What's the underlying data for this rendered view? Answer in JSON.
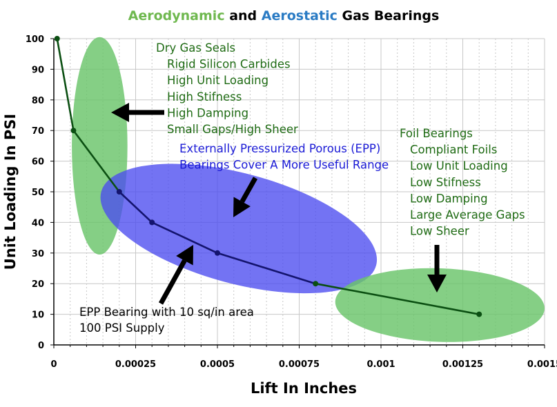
{
  "title": {
    "part1": "Aerodynamic",
    "part2": " and ",
    "part3": "Aerostatic",
    "part4": " Gas Bearings",
    "color1": "#6fb84f",
    "color3": "#2a7bc4",
    "color_text": "#000000"
  },
  "colors": {
    "green_region": "#6ac46a",
    "blue_region": "#4b4bf0",
    "line_dark_green": "#0b4f12",
    "line_dark_blue": "#14146e",
    "green_text": "#1f6b14",
    "blue_text": "#1a1ad6",
    "grid": "#c7c7c7"
  },
  "chart_data": {
    "type": "line",
    "title": "Aerodynamic and Aerostatic Gas Bearings",
    "xlabel": "Lift In Inches",
    "ylabel": "Unit Loading In PSI",
    "xlim": [
      0,
      0.0015
    ],
    "ylim": [
      0,
      100
    ],
    "x_ticks": [
      0,
      0.00025,
      0.0005,
      0.00075,
      0.001,
      0.00125,
      0.0015
    ],
    "x_tick_labels": [
      "0",
      "0.00025",
      "0.0005",
      "0.00075",
      "0.001",
      "0.00125",
      "0.0015"
    ],
    "y_ticks": [
      0,
      10,
      20,
      30,
      40,
      50,
      60,
      70,
      80,
      90,
      100
    ],
    "y_tick_labels": [
      "0",
      "10",
      "20",
      "30",
      "40",
      "50",
      "60",
      "70",
      "80",
      "90",
      "100"
    ],
    "series": [
      {
        "name": "EPP Bearing with 10 sq/in area, 100 PSI Supply",
        "x": [
          1e-05,
          6e-05,
          0.0002,
          0.0003,
          0.0005,
          0.0008,
          0.0013
        ],
        "y": [
          100,
          70,
          50,
          40,
          30,
          20,
          10
        ]
      }
    ],
    "regions": [
      {
        "name": "Dry Gas Seals",
        "cx": 0.00014,
        "cy": 65,
        "rx": 8.5e-05,
        "ry": 35.5,
        "color": "green"
      },
      {
        "name": "Externally Pressurized Porous (EPP)",
        "cx": 0.000565,
        "cy": 38,
        "rx": 0.000435,
        "ry": 18,
        "rotate_deg": 15,
        "color": "blue"
      },
      {
        "name": "Foil Bearings",
        "cx": 0.00118,
        "cy": 13,
        "rx": 0.00032,
        "ry": 12,
        "rotate_deg": 2,
        "color": "green"
      }
    ],
    "annotations": {
      "dry_gas": [
        "Dry Gas Seals",
        "Rigid Silicon Carbides",
        "High Unit Loading",
        "High Stifness",
        "High Damping",
        "Small Gaps/High Sheer"
      ],
      "epp": [
        "Externally Pressurized Porous (EPP)",
        "Bearings Cover A More Useful Range"
      ],
      "foil": [
        "Foil Bearings",
        "Compliant Foils",
        "Low Unit Loading",
        "Low Stifness",
        "Low Damping",
        "Large Average Gaps",
        "Low Sheer"
      ],
      "bearing": [
        "EPP Bearing with 10 sq/in area",
        "100 PSI Supply"
      ]
    }
  }
}
